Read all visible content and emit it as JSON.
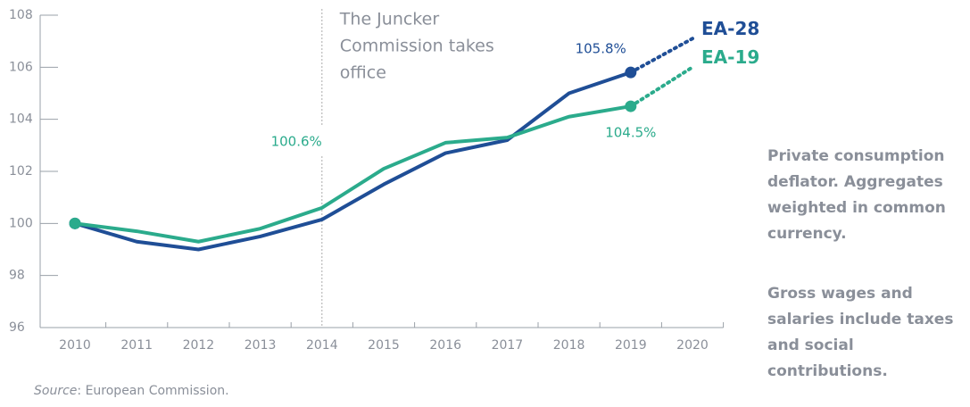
{
  "chart_data": {
    "type": "line",
    "x": [
      2010,
      2011,
      2012,
      2013,
      2014,
      2015,
      2016,
      2017,
      2018,
      2019,
      2020
    ],
    "xlim": [
      2009.5,
      2020.5
    ],
    "ylim": [
      96,
      108
    ],
    "yticks": [
      96,
      98,
      100,
      102,
      104,
      106,
      108
    ],
    "series": [
      {
        "name": "EA-28",
        "color": "#1f4e96",
        "values": [
          100,
          99.3,
          99.0,
          99.5,
          100.15,
          101.5,
          102.7,
          103.2,
          105.0,
          105.8,
          null
        ],
        "forecast": [
          null,
          null,
          null,
          null,
          null,
          null,
          null,
          null,
          null,
          105.8,
          107.1
        ],
        "value_labels": [
          null,
          null,
          null,
          null,
          null,
          null,
          null,
          null,
          null,
          "105.8%",
          null
        ]
      },
      {
        "name": "EA-19",
        "color": "#2bab8c",
        "values": [
          100,
          99.7,
          99.3,
          99.8,
          100.6,
          102.1,
          103.1,
          103.3,
          104.1,
          104.5,
          null
        ],
        "forecast": [
          null,
          null,
          null,
          null,
          null,
          null,
          null,
          null,
          null,
          104.5,
          106.0
        ],
        "value_labels": [
          null,
          null,
          null,
          null,
          "100.6%",
          null,
          null,
          null,
          null,
          "104.5%",
          null
        ]
      }
    ],
    "annotation": {
      "x": 2014,
      "text_lines": [
        "The Juncker",
        "Commission takes",
        "office"
      ]
    },
    "notes": [
      [
        "Private consumption",
        "deflator. Aggregates",
        "weighted in common",
        "currency."
      ],
      [
        "Gross wages and",
        "salaries include taxes",
        "and social",
        "contributions."
      ]
    ],
    "source_label": "Source",
    "source_text": ":  European Commission."
  }
}
